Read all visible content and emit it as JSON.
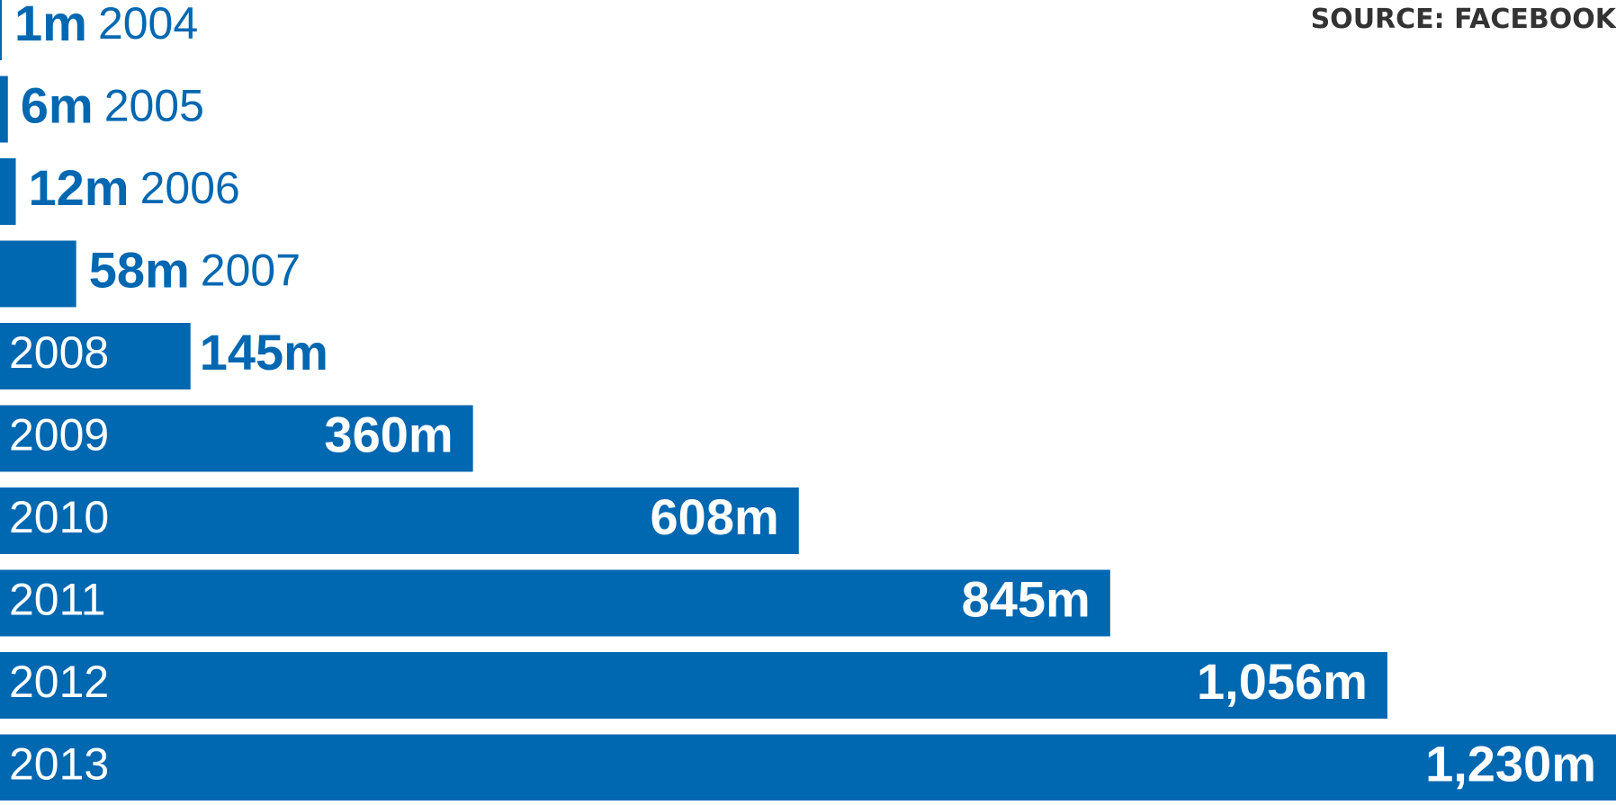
{
  "source": "SOURCE: FACEBOOK",
  "colors": {
    "bar": "#0067b1",
    "label_dark": "#0067b1",
    "label_light": "#ffffff",
    "background": "#ffffff"
  },
  "chart_data": {
    "type": "bar",
    "orientation": "horizontal",
    "unit": "m",
    "categories": [
      "2004",
      "2005",
      "2006",
      "2007",
      "2008",
      "2009",
      "2010",
      "2011",
      "2012",
      "2013"
    ],
    "values": [
      1,
      6,
      12,
      58,
      145,
      360,
      608,
      845,
      1056,
      1230
    ],
    "value_labels": [
      "1m",
      "6m",
      "12m",
      "58m",
      "145m",
      "360m",
      "608m",
      "845m",
      "1,056m",
      "1,230m"
    ],
    "title": "",
    "xlabel": "",
    "ylabel": "",
    "xlim": [
      0,
      1230
    ],
    "grid": false
  }
}
